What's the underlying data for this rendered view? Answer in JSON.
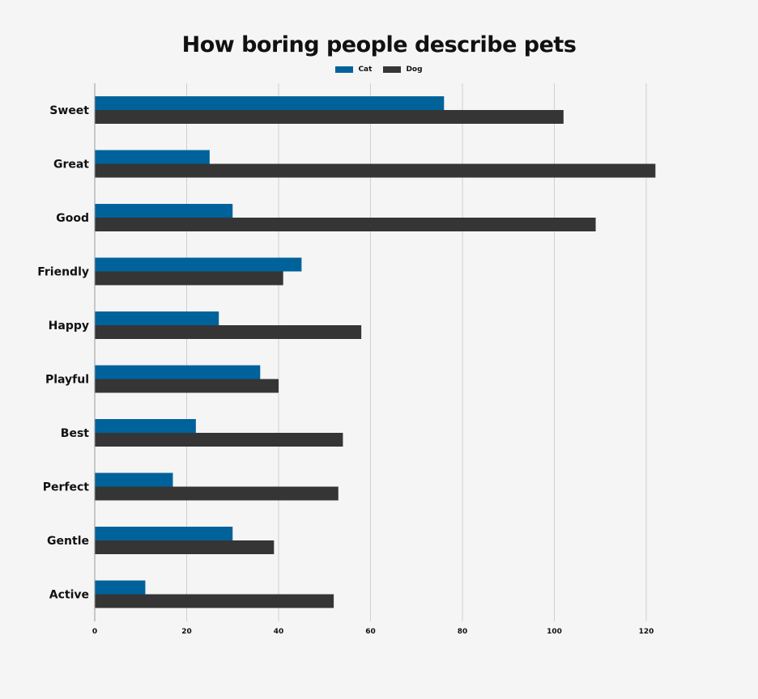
{
  "chart_data": {
    "type": "bar",
    "orientation": "horizontal",
    "title": "How boring people describe pets",
    "xlabel": "",
    "ylabel": "",
    "categories": [
      "Sweet",
      "Great",
      "Good",
      "Friendly",
      "Happy",
      "Playful",
      "Best",
      "Perfect",
      "Gentle",
      "Active"
    ],
    "series": [
      {
        "name": "Cat",
        "color": "#00629b",
        "values": [
          76,
          25,
          30,
          45,
          27,
          36,
          22,
          17,
          30,
          11
        ]
      },
      {
        "name": "Dog",
        "color": "#353535",
        "values": [
          102,
          122,
          109,
          41,
          58,
          40,
          54,
          53,
          39,
          52
        ]
      }
    ],
    "xlim": [
      0,
      130
    ],
    "xticks": [
      "0",
      "20",
      "40",
      "60",
      "80",
      "100",
      "120"
    ],
    "xtick_values": [
      0,
      20,
      40,
      60,
      80,
      100,
      120
    ],
    "grid": true,
    "legend_position": "top-center"
  }
}
